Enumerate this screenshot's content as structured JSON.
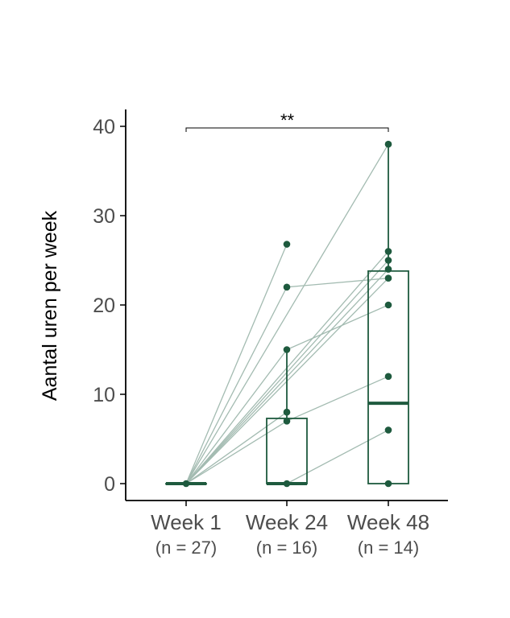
{
  "chart_data": {
    "type": "boxplot",
    "ylabel": "Aantal uren per week",
    "ylim": [
      -2,
      41
    ],
    "yticks": [
      0,
      10,
      20,
      30,
      40
    ],
    "grid": false,
    "colors": {
      "box": "#1e5a3e",
      "point": "#1e5a3e",
      "pair_line": "#a3bbb1",
      "text": "#4d4d4d",
      "axis": "#000000"
    },
    "categories": [
      {
        "label": "Week 1",
        "sublabel": "(n = 27)"
      },
      {
        "label": "Week 24",
        "sublabel": "(n = 16)"
      },
      {
        "label": "Week 48",
        "sublabel": "(n = 14)"
      }
    ],
    "boxes": [
      {
        "q1": 0,
        "median": 0,
        "q3": 0,
        "whisker_low": 0,
        "whisker_high": 0
      },
      {
        "q1": 0,
        "median": 0,
        "q3": 7.3,
        "whisker_low": 0,
        "whisker_high": 15
      },
      {
        "q1": 0,
        "median": 9,
        "q3": 23.8,
        "whisker_low": 0,
        "whisker_high": 38
      }
    ],
    "points": [
      {
        "group": 0,
        "y": 0
      },
      {
        "group": 1,
        "y": 26.8
      },
      {
        "group": 1,
        "y": 22
      },
      {
        "group": 1,
        "y": 15
      },
      {
        "group": 1,
        "y": 8
      },
      {
        "group": 1,
        "y": 7
      },
      {
        "group": 1,
        "y": 0
      },
      {
        "group": 2,
        "y": 38
      },
      {
        "group": 2,
        "y": 26
      },
      {
        "group": 2,
        "y": 25
      },
      {
        "group": 2,
        "y": 24
      },
      {
        "group": 2,
        "y": 23
      },
      {
        "group": 2,
        "y": 20
      },
      {
        "group": 2,
        "y": 12
      },
      {
        "group": 2,
        "y": 6
      },
      {
        "group": 2,
        "y": 0
      }
    ],
    "pairs": [
      [
        0,
        1,
        0,
        26.8
      ],
      [
        0,
        1,
        0,
        22
      ],
      [
        0,
        1,
        0,
        15
      ],
      [
        0,
        1,
        0,
        8
      ],
      [
        0,
        1,
        0,
        7
      ],
      [
        1,
        2,
        22,
        23
      ],
      [
        1,
        2,
        15,
        20
      ],
      [
        1,
        2,
        7,
        12
      ],
      [
        1,
        2,
        0,
        6
      ],
      [
        0,
        2,
        0,
        38
      ],
      [
        0,
        2,
        0,
        26
      ],
      [
        0,
        2,
        0,
        25
      ],
      [
        0,
        2,
        0,
        24
      ],
      [
        0,
        2,
        0,
        23
      ]
    ],
    "significance": {
      "from": 0,
      "to": 2,
      "y": 40,
      "label": "**"
    }
  }
}
